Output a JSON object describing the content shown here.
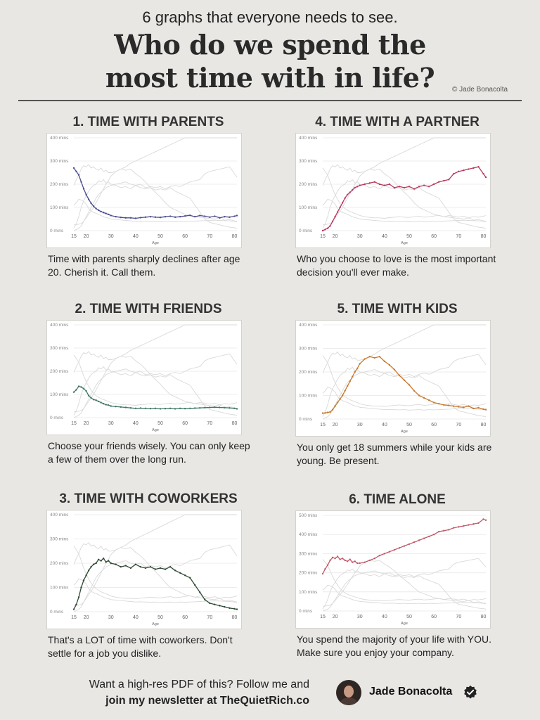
{
  "header": {
    "subtitle": "6 graphs that everyone needs to see.",
    "title_line1": "Who do we spend the",
    "title_line2": "most time with in life?",
    "credit": "© Jade Bonacolta"
  },
  "footer": {
    "line1": "Want a high-res PDF of this? Follow me and",
    "line2": "join my newsletter at TheQuietRich.co",
    "author": "Jade Bonacolta",
    "avatar_icon": "avatar-photo",
    "badge_icon": "verified-badge-icon"
  },
  "background_line_color": "#d9d9d9",
  "chart_data": [
    {
      "type": "line",
      "title": "1. TIME WITH PARENTS",
      "caption": "Time with parents sharply declines after age 20. Cherish it. Call them.",
      "xlabel": "Age",
      "ylabel": "",
      "ylim": [
        0,
        400
      ],
      "xlim": [
        15,
        81
      ],
      "yticks": [
        0,
        100,
        200,
        300,
        400
      ],
      "ytick_labels": [
        "0 mins",
        "100 mins",
        "200 mins",
        "300 mins",
        "400 mins"
      ],
      "xticks": [
        15,
        20,
        30,
        40,
        50,
        60,
        70,
        80
      ],
      "color": "#4b4f8f",
      "x": [
        15,
        16,
        17,
        18,
        19,
        20,
        21,
        22,
        23,
        24,
        25,
        26,
        27,
        28,
        29,
        30,
        32,
        34,
        36,
        38,
        40,
        42,
        44,
        46,
        48,
        50,
        52,
        54,
        56,
        58,
        60,
        62,
        64,
        66,
        68,
        70,
        72,
        74,
        76,
        78,
        80,
        81
      ],
      "values": [
        270,
        255,
        240,
        210,
        180,
        155,
        135,
        118,
        105,
        95,
        88,
        82,
        78,
        74,
        70,
        65,
        60,
        57,
        55,
        55,
        53,
        56,
        58,
        60,
        58,
        57,
        60,
        62,
        58,
        60,
        63,
        66,
        60,
        65,
        62,
        58,
        62,
        55,
        60,
        58,
        62,
        65
      ]
    },
    {
      "type": "line",
      "title": "2. TIME WITH FRIENDS",
      "caption": "Choose your friends wisely. You can only keep a few of them over the long run.",
      "xlabel": "Age",
      "ylabel": "",
      "ylim": [
        0,
        400
      ],
      "xlim": [
        15,
        81
      ],
      "yticks": [
        0,
        100,
        200,
        300,
        400
      ],
      "ytick_labels": [
        "0 mins",
        "100 mins",
        "200 mins",
        "300 mins",
        "400 mins"
      ],
      "xticks": [
        15,
        20,
        30,
        40,
        50,
        60,
        70,
        80
      ],
      "color": "#3f7a66",
      "x": [
        15,
        16,
        17,
        18,
        19,
        20,
        21,
        22,
        23,
        24,
        25,
        26,
        27,
        28,
        29,
        30,
        32,
        34,
        36,
        38,
        40,
        42,
        44,
        46,
        48,
        50,
        52,
        54,
        56,
        58,
        60,
        62,
        64,
        66,
        68,
        70,
        72,
        74,
        76,
        78,
        80,
        81
      ],
      "values": [
        110,
        120,
        135,
        132,
        125,
        115,
        95,
        85,
        78,
        75,
        70,
        65,
        60,
        56,
        54,
        50,
        48,
        46,
        44,
        42,
        40,
        41,
        40,
        39,
        40,
        38,
        39,
        40,
        38,
        40,
        39,
        40,
        41,
        42,
        43,
        44,
        45,
        44,
        43,
        42,
        40,
        38
      ]
    },
    {
      "type": "line",
      "title": "3. TIME WITH COWORKERS",
      "caption": "That's a LOT of time with coworkers. Don't settle for a job you dislike.",
      "xlabel": "Age",
      "ylabel": "",
      "ylim": [
        0,
        400
      ],
      "xlim": [
        15,
        81
      ],
      "yticks": [
        0,
        100,
        200,
        300,
        400
      ],
      "ytick_labels": [
        "0 mins",
        "100 mins",
        "200 mins",
        "300 mins",
        "400 mins"
      ],
      "xticks": [
        15,
        20,
        30,
        40,
        50,
        60,
        70,
        80
      ],
      "color": "#2f4a34",
      "x": [
        15,
        16,
        17,
        18,
        19,
        20,
        21,
        22,
        23,
        24,
        25,
        26,
        27,
        28,
        29,
        30,
        32,
        34,
        36,
        38,
        40,
        42,
        44,
        46,
        48,
        50,
        52,
        54,
        56,
        58,
        60,
        62,
        64,
        66,
        68,
        70,
        72,
        74,
        76,
        78,
        80,
        81
      ],
      "values": [
        10,
        30,
        60,
        100,
        130,
        150,
        170,
        185,
        195,
        200,
        215,
        210,
        220,
        205,
        210,
        200,
        195,
        185,
        190,
        180,
        195,
        185,
        180,
        185,
        175,
        180,
        175,
        185,
        170,
        160,
        150,
        140,
        110,
        80,
        50,
        35,
        30,
        25,
        20,
        15,
        12,
        10
      ]
    },
    {
      "type": "line",
      "title": "4. TIME WITH A PARTNER",
      "caption": "Who you choose to love is the most important decision you'll ever make.",
      "xlabel": "Age",
      "ylabel": "",
      "ylim": [
        0,
        400
      ],
      "xlim": [
        15,
        81
      ],
      "yticks": [
        0,
        100,
        200,
        300,
        400
      ],
      "ytick_labels": [
        "0 mins",
        "100 mins",
        "200 mins",
        "300 mins",
        "400 mins"
      ],
      "xticks": [
        15,
        20,
        30,
        40,
        50,
        60,
        70,
        80
      ],
      "color": "#b73a5e",
      "x": [
        15,
        16,
        17,
        18,
        19,
        20,
        21,
        22,
        23,
        24,
        25,
        26,
        27,
        28,
        29,
        30,
        32,
        34,
        36,
        38,
        40,
        42,
        44,
        46,
        48,
        50,
        52,
        54,
        56,
        58,
        60,
        62,
        64,
        66,
        68,
        70,
        72,
        74,
        76,
        78,
        80,
        81
      ],
      "values": [
        0,
        5,
        10,
        20,
        40,
        60,
        80,
        100,
        120,
        140,
        155,
        165,
        175,
        185,
        190,
        195,
        200,
        205,
        210,
        200,
        195,
        200,
        185,
        190,
        185,
        190,
        180,
        190,
        195,
        190,
        200,
        210,
        215,
        220,
        245,
        255,
        260,
        265,
        270,
        275,
        245,
        230
      ]
    },
    {
      "type": "line",
      "title": "5. TIME WITH KIDS",
      "caption": "You only get 18 summers while your kids are young. Be present.",
      "xlabel": "Age",
      "ylabel": "",
      "ylim": [
        0,
        400
      ],
      "xlim": [
        15,
        81
      ],
      "yticks": [
        0,
        100,
        200,
        300,
        400
      ],
      "ytick_labels": [
        "0 mins",
        "100 mins",
        "200 mins",
        "300 mins",
        "400 mins"
      ],
      "xticks": [
        15,
        20,
        30,
        40,
        50,
        60,
        70,
        80
      ],
      "color": "#c87a2e",
      "x": [
        15,
        16,
        17,
        18,
        19,
        20,
        21,
        22,
        23,
        24,
        25,
        26,
        27,
        28,
        29,
        30,
        32,
        34,
        36,
        38,
        40,
        42,
        44,
        46,
        48,
        50,
        52,
        54,
        56,
        58,
        60,
        62,
        64,
        66,
        68,
        70,
        72,
        74,
        76,
        78,
        80,
        81
      ],
      "values": [
        25,
        26,
        28,
        30,
        40,
        55,
        70,
        85,
        100,
        120,
        140,
        160,
        180,
        200,
        215,
        235,
        255,
        265,
        260,
        265,
        245,
        230,
        210,
        185,
        165,
        145,
        120,
        100,
        90,
        80,
        70,
        65,
        60,
        58,
        55,
        52,
        50,
        55,
        45,
        48,
        42,
        40
      ]
    },
    {
      "type": "line",
      "title": "6. TIME ALONE",
      "caption": "You spend the majority of your life with YOU. Make sure you enjoy your company.",
      "xlabel": "Age",
      "ylabel": "",
      "ylim": [
        0,
        500
      ],
      "xlim": [
        15,
        81
      ],
      "yticks": [
        0,
        100,
        200,
        300,
        400,
        500
      ],
      "ytick_labels": [
        "0 mins",
        "100 mins",
        "200 mins",
        "300 mins",
        "400 mins",
        "500 mins"
      ],
      "xticks": [
        15,
        20,
        30,
        40,
        50,
        60,
        70,
        80
      ],
      "color": "#c25a6b",
      "x": [
        15,
        16,
        17,
        18,
        19,
        20,
        21,
        22,
        23,
        24,
        25,
        26,
        27,
        28,
        29,
        30,
        32,
        34,
        36,
        38,
        40,
        42,
        44,
        46,
        48,
        50,
        52,
        54,
        56,
        58,
        60,
        62,
        64,
        66,
        68,
        70,
        72,
        74,
        76,
        78,
        80,
        81
      ],
      "values": [
        195,
        220,
        240,
        265,
        280,
        275,
        285,
        270,
        275,
        265,
        260,
        270,
        255,
        260,
        250,
        250,
        255,
        265,
        275,
        290,
        300,
        310,
        320,
        330,
        340,
        350,
        360,
        370,
        380,
        390,
        400,
        415,
        420,
        425,
        435,
        440,
        445,
        450,
        455,
        460,
        480,
        475
      ]
    }
  ]
}
